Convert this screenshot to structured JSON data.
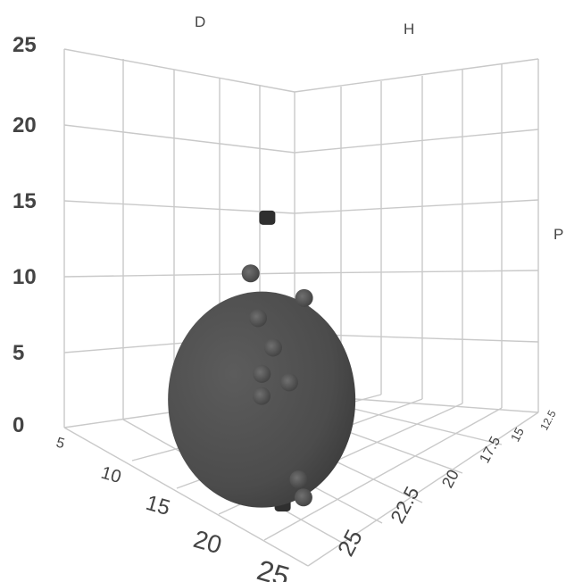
{
  "chart_data": {
    "type": "scatter",
    "title": "",
    "axes": {
      "z": {
        "ticks": [
          "0",
          "5",
          "10",
          "15",
          "20",
          "25"
        ],
        "range": [
          0,
          25
        ]
      },
      "x": {
        "ticks": [
          "5",
          "10",
          "15",
          "20",
          "25"
        ],
        "range": [
          5,
          25
        ]
      },
      "y": {
        "ticks": [
          "25",
          "22.5",
          "20",
          "17.5",
          "15",
          "12.5"
        ],
        "range": [
          12.5,
          25
        ]
      }
    },
    "wall_labels": {
      "left": "D",
      "right": "H",
      "side": "P"
    },
    "grid": true,
    "bubble": {
      "label": "",
      "x": 15.7,
      "y": 20.2,
      "z": 9.5,
      "color": "#5f5f5f"
    },
    "points": [
      {
        "x": 8.3,
        "y": 24.6,
        "z": 16.6
      },
      {
        "x": 11.8,
        "y": 23.4,
        "z": 14.9
      },
      {
        "x": 7.5,
        "y": 22.8,
        "z": 11.3
      },
      {
        "x": 13.1,
        "y": 22.1,
        "z": 13.1
      },
      {
        "x": 12.4,
        "y": 21.6,
        "z": 10.8
      },
      {
        "x": 14.6,
        "y": 20.9,
        "z": 10.4
      },
      {
        "x": 14.0,
        "y": 21.3,
        "z": 7.9
      },
      {
        "x": 8.8,
        "y": 22.9,
        "z": 4.9
      },
      {
        "x": 16.3,
        "y": 17.5,
        "z": 5.8
      },
      {
        "x": 18.0,
        "y": 16.1,
        "z": 6.5
      },
      {
        "x": 24.4,
        "y": 13.3,
        "z": 11.8
      },
      {
        "x": 10.1,
        "y": 21.7,
        "z": 2.9
      },
      {
        "x": 11.4,
        "y": 21.1,
        "z": 2.1
      },
      {
        "x": 12.2,
        "y": 21.6,
        "z": 3.9
      }
    ],
    "colors": {
      "marker": "#2f2f2f",
      "grid": "#c9c9c9",
      "text": "#444444"
    }
  }
}
